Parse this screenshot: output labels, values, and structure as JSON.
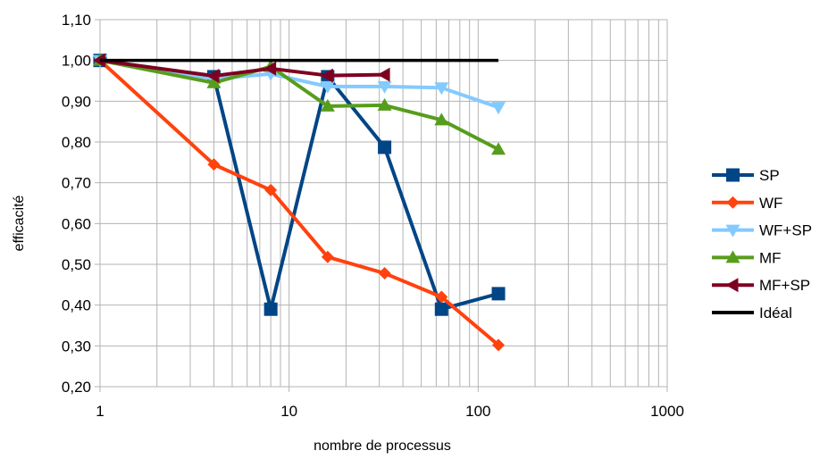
{
  "chart_data": {
    "type": "line",
    "xscale": "log",
    "xlim": [
      1,
      1000
    ],
    "ylim": [
      0.2,
      1.1
    ],
    "xlabel": "nombre de processus",
    "ylabel": "efficacité",
    "grid": true,
    "legend_position": "right",
    "x_ticks": [
      "1",
      "10",
      "100",
      "1000"
    ],
    "y_ticks": [
      "0,20",
      "0,30",
      "0,40",
      "0,50",
      "0,60",
      "0,70",
      "0,80",
      "0,90",
      "1,00",
      "1,10"
    ],
    "series": [
      {
        "name": "SP",
        "color": "#004586",
        "marker": "square",
        "x": [
          1,
          4,
          8,
          16,
          32,
          64,
          128
        ],
        "y": [
          1.0,
          0.96,
          0.39,
          0.96,
          0.787,
          0.39,
          0.428
        ]
      },
      {
        "name": "WF",
        "color": "#ff420e",
        "marker": "diamond",
        "x": [
          1,
          4,
          8,
          16,
          32,
          64,
          128
        ],
        "y": [
          1.0,
          0.745,
          0.682,
          0.518,
          0.478,
          0.42,
          0.302
        ]
      },
      {
        "name": "WF+SP",
        "color": "#83caff",
        "marker": "triangle-down",
        "x": [
          1,
          4,
          8,
          16,
          32,
          64,
          128
        ],
        "y": [
          1.0,
          0.955,
          0.967,
          0.936,
          0.936,
          0.933,
          0.885
        ]
      },
      {
        "name": "MF",
        "color": "#579d1c",
        "marker": "triangle-up",
        "x": [
          1,
          4,
          8,
          16,
          32,
          64,
          128
        ],
        "y": [
          1.0,
          0.945,
          0.985,
          0.888,
          0.89,
          0.854,
          0.782
        ]
      },
      {
        "name": "MF+SP",
        "color": "#7e0021",
        "marker": "triangle-left",
        "x": [
          1,
          4,
          8,
          16,
          32
        ],
        "y": [
          1.0,
          0.962,
          0.98,
          0.963,
          0.965
        ]
      },
      {
        "name": "Idéal",
        "color": "#000000",
        "marker": "none",
        "x": [
          1,
          128
        ],
        "y": [
          1.0,
          1.0
        ]
      }
    ]
  }
}
